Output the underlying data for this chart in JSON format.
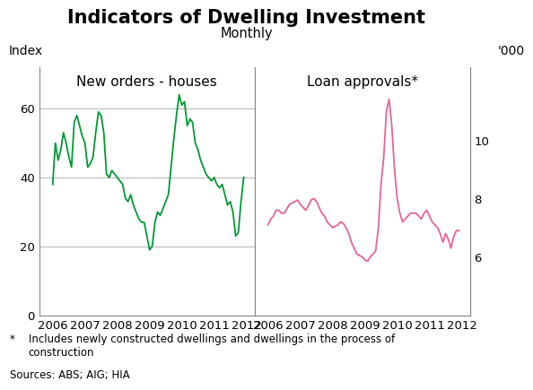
{
  "title": "Indicators of Dwelling Investment",
  "subtitle": "Monthly",
  "left_panel_title": "New orders - houses",
  "right_panel_title": "Loan approvals*",
  "left_ylabel": "Index",
  "right_ylabel": "'000",
  "footnote_star": "*",
  "footnote_text": "    Includes newly constructed dwellings and dwellings in the process of\n     construction",
  "sources": "Sources: ABS; AIG; HIA",
  "left_ylim": [
    0,
    72
  ],
  "right_ylim": [
    4,
    12.5
  ],
  "left_yticks": [
    0,
    20,
    40,
    60
  ],
  "right_yticks": [
    6,
    8,
    10
  ],
  "right_yticks_labels": [
    "6",
    "8",
    "10"
  ],
  "xticks": [
    2006,
    2007,
    2008,
    2009,
    2010,
    2011,
    2012
  ],
  "xlim_left": [
    2005.58,
    2012.25
  ],
  "xlim_right": [
    2005.58,
    2012.25
  ],
  "green_color": "#009933",
  "pink_color": "#E8629A",
  "background_color": "#ffffff",
  "grid_color": "#bbbbbb",
  "spine_color": "#888888",
  "title_fontsize": 15,
  "subtitle_fontsize": 10.5,
  "panel_label_fontsize": 11,
  "axis_label_fontsize": 10,
  "tick_fontsize": 9.5,
  "footnote_fontsize": 8.5,
  "left_x": [
    2006.0,
    2006.083,
    2006.167,
    2006.25,
    2006.333,
    2006.417,
    2006.5,
    2006.583,
    2006.667,
    2006.75,
    2006.833,
    2006.917,
    2007.0,
    2007.083,
    2007.167,
    2007.25,
    2007.333,
    2007.417,
    2007.5,
    2007.583,
    2007.667,
    2007.75,
    2007.833,
    2007.917,
    2008.0,
    2008.083,
    2008.167,
    2008.25,
    2008.333,
    2008.417,
    2008.5,
    2008.583,
    2008.667,
    2008.75,
    2008.833,
    2008.917,
    2009.0,
    2009.083,
    2009.167,
    2009.25,
    2009.333,
    2009.417,
    2009.5,
    2009.583,
    2009.667,
    2009.75,
    2009.833,
    2009.917,
    2010.0,
    2010.083,
    2010.167,
    2010.25,
    2010.333,
    2010.417,
    2010.5,
    2010.583,
    2010.667,
    2010.75,
    2010.833,
    2010.917,
    2011.0,
    2011.083,
    2011.167,
    2011.25,
    2011.333,
    2011.417,
    2011.5,
    2011.583,
    2011.667,
    2011.75,
    2011.833,
    2011.917
  ],
  "left_y": [
    38,
    50,
    45,
    48,
    53,
    50,
    46,
    43,
    56,
    58,
    55,
    52,
    50,
    43,
    44,
    46,
    53,
    59,
    58,
    53,
    41,
    40,
    42,
    41,
    40,
    39,
    38,
    34,
    33,
    35,
    32,
    30,
    28,
    27,
    27,
    23,
    19,
    20,
    27,
    30,
    29,
    31,
    33,
    35,
    43,
    51,
    58,
    64,
    61,
    62,
    55,
    57,
    56,
    50,
    48,
    45,
    43,
    41,
    40,
    39,
    40,
    38,
    37,
    38,
    35,
    32,
    33,
    30,
    23,
    24,
    33,
    40
  ],
  "right_x": [
    2006.0,
    2006.083,
    2006.167,
    2006.25,
    2006.333,
    2006.417,
    2006.5,
    2006.583,
    2006.667,
    2006.75,
    2006.833,
    2006.917,
    2007.0,
    2007.083,
    2007.167,
    2007.25,
    2007.333,
    2007.417,
    2007.5,
    2007.583,
    2007.667,
    2007.75,
    2007.833,
    2007.917,
    2008.0,
    2008.083,
    2008.167,
    2008.25,
    2008.333,
    2008.417,
    2008.5,
    2008.583,
    2008.667,
    2008.75,
    2008.833,
    2008.917,
    2009.0,
    2009.083,
    2009.167,
    2009.25,
    2009.333,
    2009.417,
    2009.5,
    2009.583,
    2009.667,
    2009.75,
    2009.833,
    2009.917,
    2010.0,
    2010.083,
    2010.167,
    2010.25,
    2010.333,
    2010.417,
    2010.5,
    2010.583,
    2010.667,
    2010.75,
    2010.833,
    2010.917,
    2011.0,
    2011.083,
    2011.167,
    2011.25,
    2011.333,
    2011.417,
    2011.5,
    2011.583,
    2011.667,
    2011.75,
    2011.833,
    2011.917
  ],
  "right_y": [
    7.1,
    7.3,
    7.4,
    7.6,
    7.6,
    7.5,
    7.5,
    7.65,
    7.8,
    7.85,
    7.9,
    7.95,
    7.8,
    7.7,
    7.6,
    7.75,
    7.95,
    8.0,
    7.9,
    7.7,
    7.5,
    7.4,
    7.2,
    7.1,
    7.0,
    7.05,
    7.1,
    7.2,
    7.15,
    7.0,
    6.8,
    6.5,
    6.3,
    6.1,
    6.05,
    6.0,
    5.9,
    5.85,
    6.0,
    6.1,
    6.2,
    7.0,
    8.5,
    9.4,
    11.0,
    11.4,
    10.5,
    9.0,
    8.0,
    7.5,
    7.2,
    7.3,
    7.4,
    7.5,
    7.5,
    7.5,
    7.4,
    7.3,
    7.5,
    7.6,
    7.4,
    7.2,
    7.1,
    7.0,
    6.8,
    6.5,
    6.8,
    6.6,
    6.3,
    6.7,
    6.9,
    6.9
  ]
}
